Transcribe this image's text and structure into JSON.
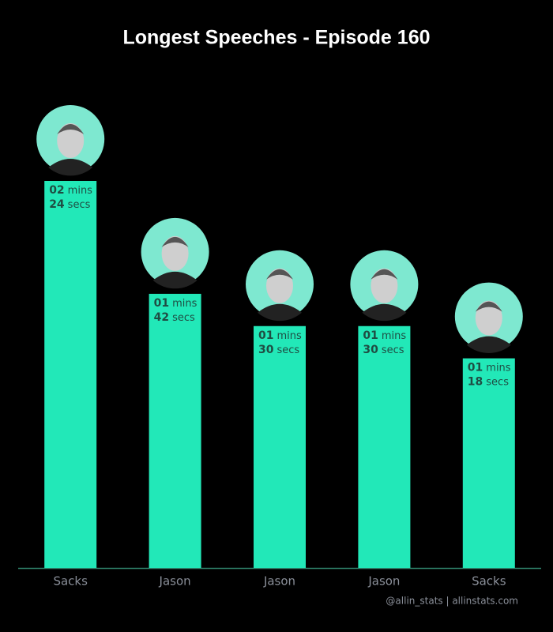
{
  "chart_data": {
    "type": "bar",
    "title": "Longest Speeches - Episode 160",
    "categories": [
      "Sacks",
      "Jason",
      "Jason",
      "Jason",
      "Sacks"
    ],
    "values": [
      144,
      102,
      90,
      90,
      78
    ],
    "value_labels": [
      {
        "mins": "02",
        "secs": "24"
      },
      {
        "mins": "01",
        "secs": "42"
      },
      {
        "mins": "01",
        "secs": "30"
      },
      {
        "mins": "01",
        "secs": "30"
      },
      {
        "mins": "01",
        "secs": "18"
      }
    ],
    "units": {
      "mins": "mins",
      "secs": "secs"
    },
    "color": "#22e8b8",
    "footer": "@allin_stats | allinstats.com"
  }
}
